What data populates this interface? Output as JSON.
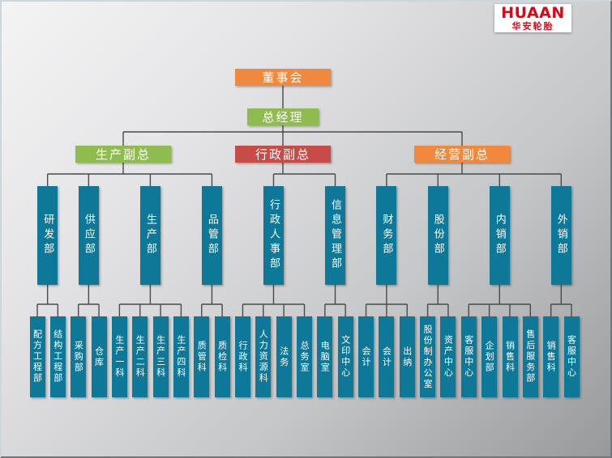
{
  "logo": {
    "title": "HUAAN",
    "subtitle": "华安轮胎"
  },
  "colors": {
    "orange": "#F0883E",
    "green": "#8FBC4E",
    "red": "#C74B47",
    "teal": "#0E7899",
    "line": "#4A4A4A",
    "logo_red": "#E60012"
  },
  "org": {
    "root": {
      "label": "董事会",
      "color": "orange"
    },
    "gm": {
      "label": "总经理",
      "color": "green"
    },
    "vps": [
      {
        "label": "生产副总",
        "color": "green",
        "departments": [
          {
            "label": "研发部",
            "sections": [
              "配方工程部",
              "结构工程部"
            ]
          },
          {
            "label": "供应部",
            "sections": [
              "采购部",
              "仓库"
            ]
          },
          {
            "label": "生产部",
            "sections": [
              "生产一科",
              "生产二科",
              "生产三科",
              "生产四科"
            ]
          },
          {
            "label": "品管部",
            "sections": [
              "质管科",
              "质检科"
            ]
          }
        ]
      },
      {
        "label": "行政副总",
        "color": "red",
        "departments": [
          {
            "label": "行政人事部",
            "sections": [
              "行政科",
              "人力资源科",
              "法务",
              "总务室"
            ]
          },
          {
            "label": "信息管理部",
            "sections": [
              "电脑室",
              "文印中心"
            ]
          }
        ]
      },
      {
        "label": "经营副总",
        "color": "orange",
        "departments": [
          {
            "label": "财务部",
            "sections": [
              "会计",
              "会计",
              "出纳"
            ]
          },
          {
            "label": "股份部",
            "sections": [
              "股份制办公室",
              "资产中心"
            ]
          },
          {
            "label": "内销部",
            "sections": [
              "客服中心",
              "企划部",
              "销售科",
              "售后服务部"
            ]
          },
          {
            "label": "外销部",
            "sections": [
              "销售科",
              "客服中心"
            ]
          }
        ]
      }
    ]
  }
}
